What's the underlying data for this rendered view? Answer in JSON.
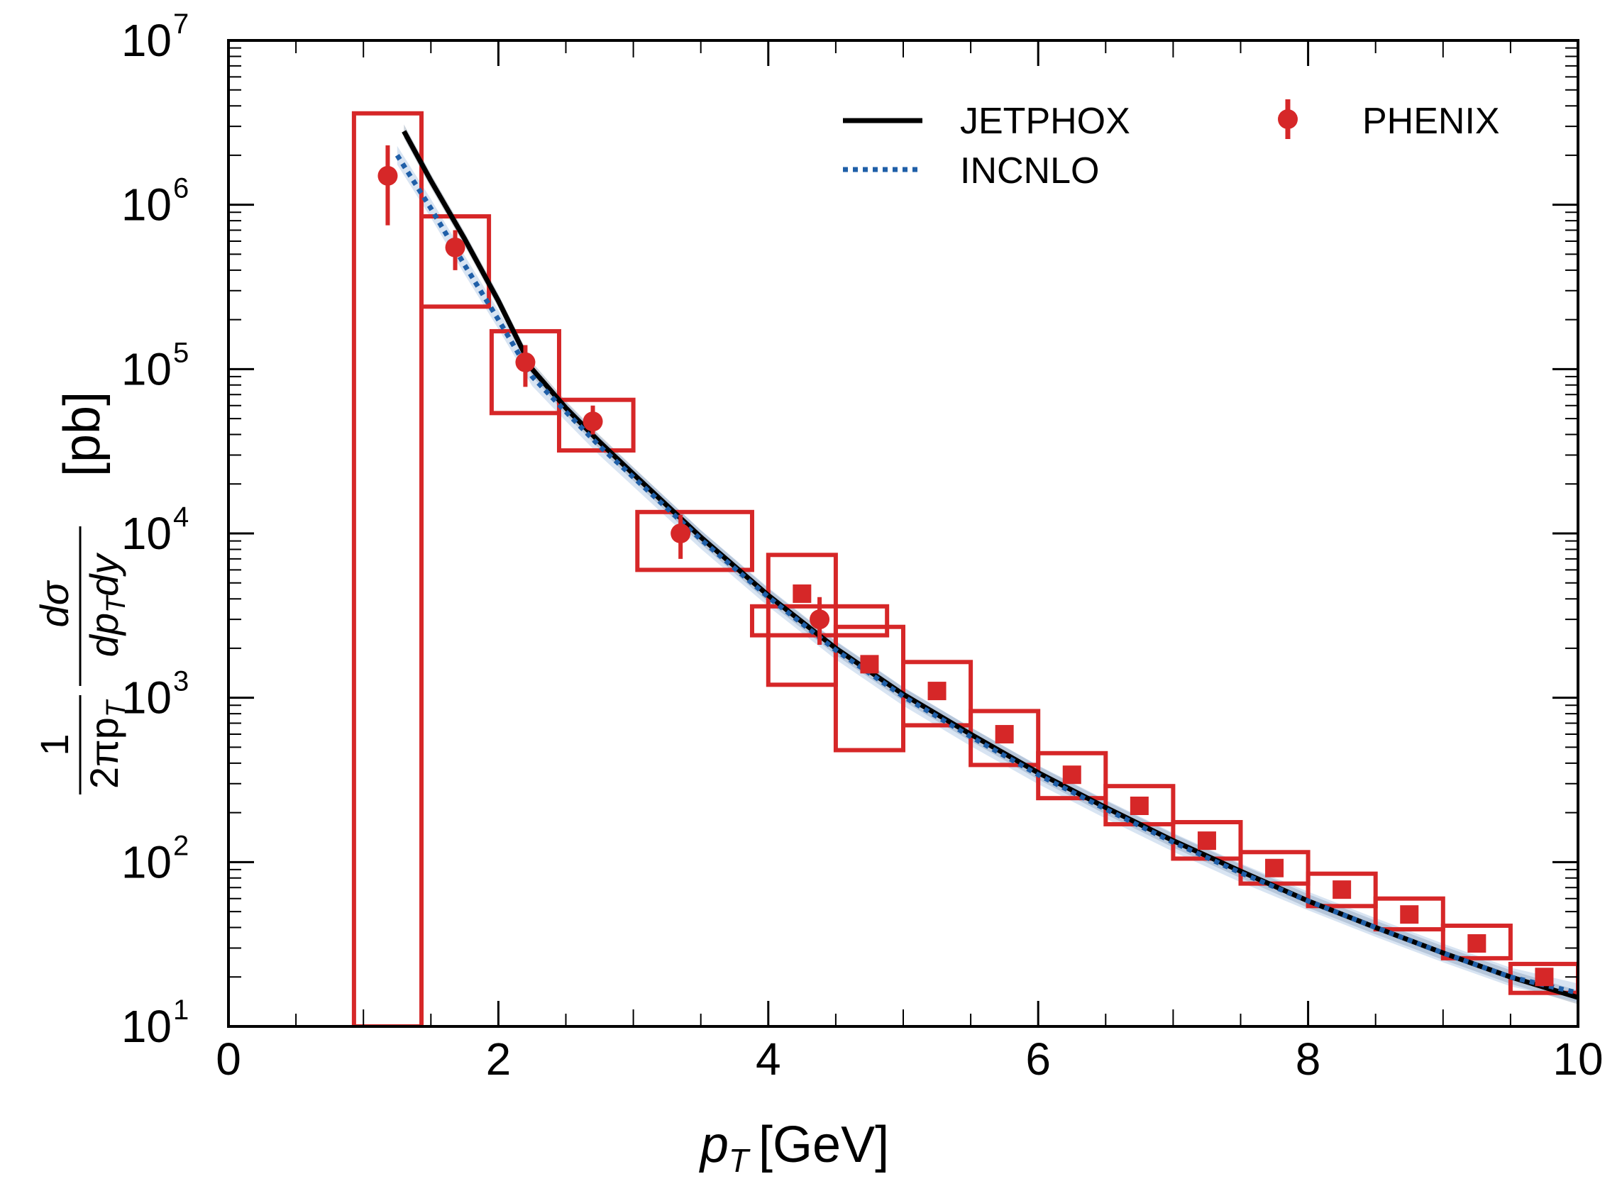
{
  "chart_data": {
    "type": "scatter",
    "title": "",
    "xlabel_var": "p",
    "xlabel_sub": "T",
    "xlabel_unit": "[GeV]",
    "ylabel_prefactor": "1",
    "ylabel_prefactor_den": "2πp",
    "ylabel_num": "dσ",
    "ylabel_den": "dp",
    "ylabel_den_tail": "dy",
    "ylabel_sub": "T",
    "ylabel_unit": "[pb]",
    "xlim": [
      0,
      10
    ],
    "ylim": [
      10,
      10000000
    ],
    "yscale": "log",
    "x_ticks": [
      "0",
      "2",
      "4",
      "6",
      "8",
      "10"
    ],
    "y_ticks": [
      {
        "base": "10",
        "exp": "1"
      },
      {
        "base": "10",
        "exp": "2"
      },
      {
        "base": "10",
        "exp": "3"
      },
      {
        "base": "10",
        "exp": "4"
      },
      {
        "base": "10",
        "exp": "5"
      },
      {
        "base": "10",
        "exp": "6"
      },
      {
        "base": "10",
        "exp": "7"
      }
    ],
    "legend_position": "top-right",
    "series": [
      {
        "name": "JETPHOX",
        "kind": "line",
        "color": "#000000",
        "x": [
          1.3,
          1.5,
          1.75,
          2.0,
          2.25,
          2.5,
          2.75,
          3.0,
          3.5,
          4.0,
          4.5,
          5.0,
          5.5,
          6.0,
          6.5,
          7.0,
          7.5,
          8.0,
          8.5,
          9.0,
          9.5,
          10.0
        ],
        "y": [
          2800000,
          1400000,
          620000,
          260000,
          100000,
          58000,
          36000,
          23000,
          9500,
          4200,
          2000,
          1050,
          600,
          350,
          215,
          135,
          88,
          58,
          40,
          28,
          20,
          15
        ]
      },
      {
        "name": "INCNLO",
        "kind": "dotted-line",
        "color": "#1f5fa8",
        "x": [
          1.25,
          1.5,
          1.75,
          2.0,
          2.25,
          2.5,
          2.75,
          3.0,
          3.5,
          4.0,
          4.5,
          5.0,
          5.5,
          6.0,
          6.5,
          7.0,
          7.5,
          8.0,
          8.5,
          9.0,
          9.5,
          10.0
        ],
        "y": [
          2000000,
          950000,
          430000,
          200000,
          90000,
          55000,
          34000,
          22000,
          9200,
          4100,
          1950,
          1020,
          580,
          340,
          210,
          132,
          86,
          58,
          40,
          28,
          20,
          16
        ]
      },
      {
        "name": "PHENIX",
        "kind": "points",
        "color": "#d62728",
        "points": [
          {
            "x": 1.18,
            "y": 1500000,
            "ylo": 750000,
            "yhi": 2300000,
            "marker": "circle"
          },
          {
            "x": 1.68,
            "y": 550000,
            "ylo": 400000,
            "yhi": 700000,
            "marker": "circle"
          },
          {
            "x": 2.2,
            "y": 110000,
            "ylo": 78000,
            "yhi": 140000,
            "marker": "circle"
          },
          {
            "x": 2.7,
            "y": 48000,
            "ylo": 40000,
            "yhi": 60000,
            "marker": "circle"
          },
          {
            "x": 3.35,
            "y": 10000,
            "ylo": 7000,
            "yhi": 13000,
            "marker": "circle"
          },
          {
            "x": 4.38,
            "y": 3000,
            "ylo": 2100,
            "yhi": 4100,
            "marker": "circle"
          },
          {
            "x": 4.25,
            "y": 4300,
            "marker": "square"
          },
          {
            "x": 4.75,
            "y": 1600,
            "marker": "square"
          },
          {
            "x": 5.25,
            "y": 1100,
            "marker": "square"
          },
          {
            "x": 5.75,
            "y": 600,
            "marker": "square"
          },
          {
            "x": 6.25,
            "y": 340,
            "marker": "square"
          },
          {
            "x": 6.75,
            "y": 220,
            "marker": "square"
          },
          {
            "x": 7.25,
            "y": 135,
            "marker": "square"
          },
          {
            "x": 7.75,
            "y": 92,
            "marker": "square"
          },
          {
            "x": 8.25,
            "y": 68,
            "marker": "square"
          },
          {
            "x": 8.75,
            "y": 48,
            "marker": "square"
          },
          {
            "x": 9.25,
            "y": 32,
            "marker": "square"
          },
          {
            "x": 9.75,
            "y": 20,
            "marker": "square"
          }
        ],
        "syst_boxes": [
          {
            "x0": 0.93,
            "x1": 1.43,
            "y0": 10,
            "y1": 3600000
          },
          {
            "x0": 1.43,
            "x1": 1.93,
            "y0": 240000,
            "y1": 850000
          },
          {
            "x0": 1.95,
            "x1": 2.45,
            "y0": 54000,
            "y1": 170000
          },
          {
            "x0": 2.45,
            "x1": 3.0,
            "y0": 32000,
            "y1": 65000
          },
          {
            "x0": 3.03,
            "x1": 3.88,
            "y0": 6000,
            "y1": 13500
          },
          {
            "x0": 3.88,
            "x1": 4.88,
            "y0": 2400,
            "y1": 3600
          },
          {
            "x0": 4.0,
            "x1": 4.5,
            "y0": 1200,
            "y1": 7400
          },
          {
            "x0": 4.5,
            "x1": 5.0,
            "y0": 480,
            "y1": 2700
          },
          {
            "x0": 5.0,
            "x1": 5.5,
            "y0": 680,
            "y1": 1650
          },
          {
            "x0": 5.5,
            "x1": 6.0,
            "y0": 390,
            "y1": 830
          },
          {
            "x0": 6.0,
            "x1": 6.5,
            "y0": 245,
            "y1": 460
          },
          {
            "x0": 6.5,
            "x1": 7.0,
            "y0": 170,
            "y1": 290
          },
          {
            "x0": 7.0,
            "x1": 7.5,
            "y0": 105,
            "y1": 175
          },
          {
            "x0": 7.5,
            "x1": 8.0,
            "y0": 74,
            "y1": 115
          },
          {
            "x0": 8.0,
            "x1": 8.5,
            "y0": 54,
            "y1": 85
          },
          {
            "x0": 8.5,
            "x1": 9.0,
            "y0": 39,
            "y1": 60
          },
          {
            "x0": 9.0,
            "x1": 9.5,
            "y0": 26,
            "y1": 41
          },
          {
            "x0": 9.5,
            "x1": 10.0,
            "y0": 16,
            "y1": 24
          }
        ]
      }
    ],
    "bands": [
      {
        "color": "#6a7f95",
        "opacity": 0.35,
        "spread": 0.1
      },
      {
        "color": "#8fb3d9",
        "opacity": 0.35,
        "spread": 0.14
      }
    ]
  }
}
